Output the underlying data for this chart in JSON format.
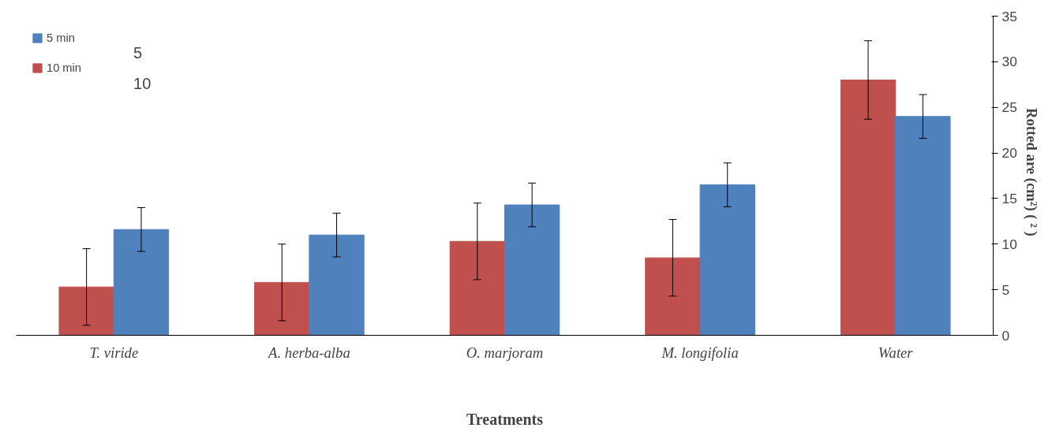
{
  "chart_data": {
    "type": "bar",
    "xlabel": "Treatments",
    "ylabel": "Rotted are (cm²)  ( ²  )",
    "categories": [
      "T. viride",
      "A. herba-alba",
      "O. marjoram",
      "M. longifolia",
      "Water"
    ],
    "series": [
      {
        "name": "10 min",
        "color": "#c0504d",
        "values": [
          5.3,
          5.8,
          10.3,
          8.5,
          28.0
        ],
        "errors": [
          4.2,
          4.2,
          4.2,
          4.2,
          4.3
        ]
      },
      {
        "name": "5 min",
        "color": "#4f81bd",
        "values": [
          11.6,
          11.0,
          14.3,
          16.5,
          24.0
        ],
        "errors": [
          2.4,
          2.4,
          2.4,
          2.4,
          2.4
        ]
      }
    ],
    "ylim": [
      0,
      35
    ],
    "yticks": [
      0,
      5,
      10,
      15,
      20,
      25,
      30,
      35
    ],
    "grid": false,
    "legend": "top left",
    "annotations": [
      "5",
      "10"
    ]
  }
}
